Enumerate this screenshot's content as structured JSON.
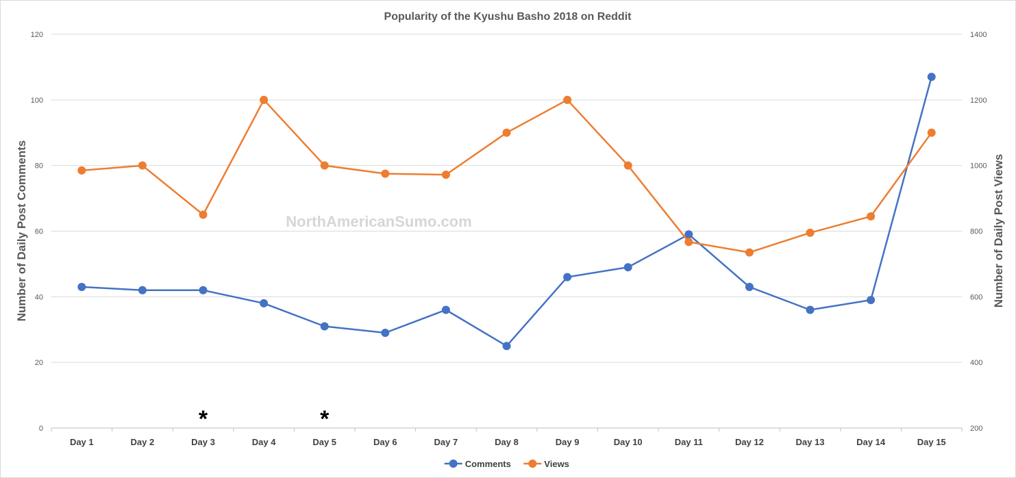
{
  "chart_data": {
    "type": "line",
    "title": "Popularity of the Kyushu Basho 2018 on Reddit",
    "categories": [
      "Day 1",
      "Day 2",
      "Day 3",
      "Day 4",
      "Day 5",
      "Day 6",
      "Day 7",
      "Day 8",
      "Day 9",
      "Day 10",
      "Day 11",
      "Day 12",
      "Day 13",
      "Day 14",
      "Day 15"
    ],
    "series": [
      {
        "name": "Comments",
        "axis": "left",
        "color": "#4472c4",
        "values": [
          43,
          42,
          42,
          38,
          31,
          29,
          36,
          25,
          46,
          49,
          59,
          43,
          36,
          39,
          107
        ]
      },
      {
        "name": "Views",
        "axis": "right",
        "color": "#ed7d31",
        "values": [
          985,
          1000,
          850,
          1200,
          1000,
          975,
          972,
          1100,
          1200,
          1000,
          767,
          735,
          795,
          845,
          1100
        ]
      }
    ],
    "ylabel_left": "Number of Daily Post Comments",
    "ylabel_right": "Number of Daily Post Views",
    "ylim_left": [
      0,
      120
    ],
    "ylim_right": [
      200,
      1400
    ],
    "yticks_left": [
      0,
      20,
      40,
      60,
      80,
      100,
      120
    ],
    "yticks_right": [
      200,
      400,
      600,
      800,
      1000,
      1200,
      1400
    ],
    "grid": true,
    "legend_position": "bottom",
    "watermark": "NorthAmericanSumo.com",
    "annotations": [
      {
        "text": "*",
        "category": "Day 3"
      },
      {
        "text": "*",
        "category": "Day 5"
      }
    ]
  }
}
